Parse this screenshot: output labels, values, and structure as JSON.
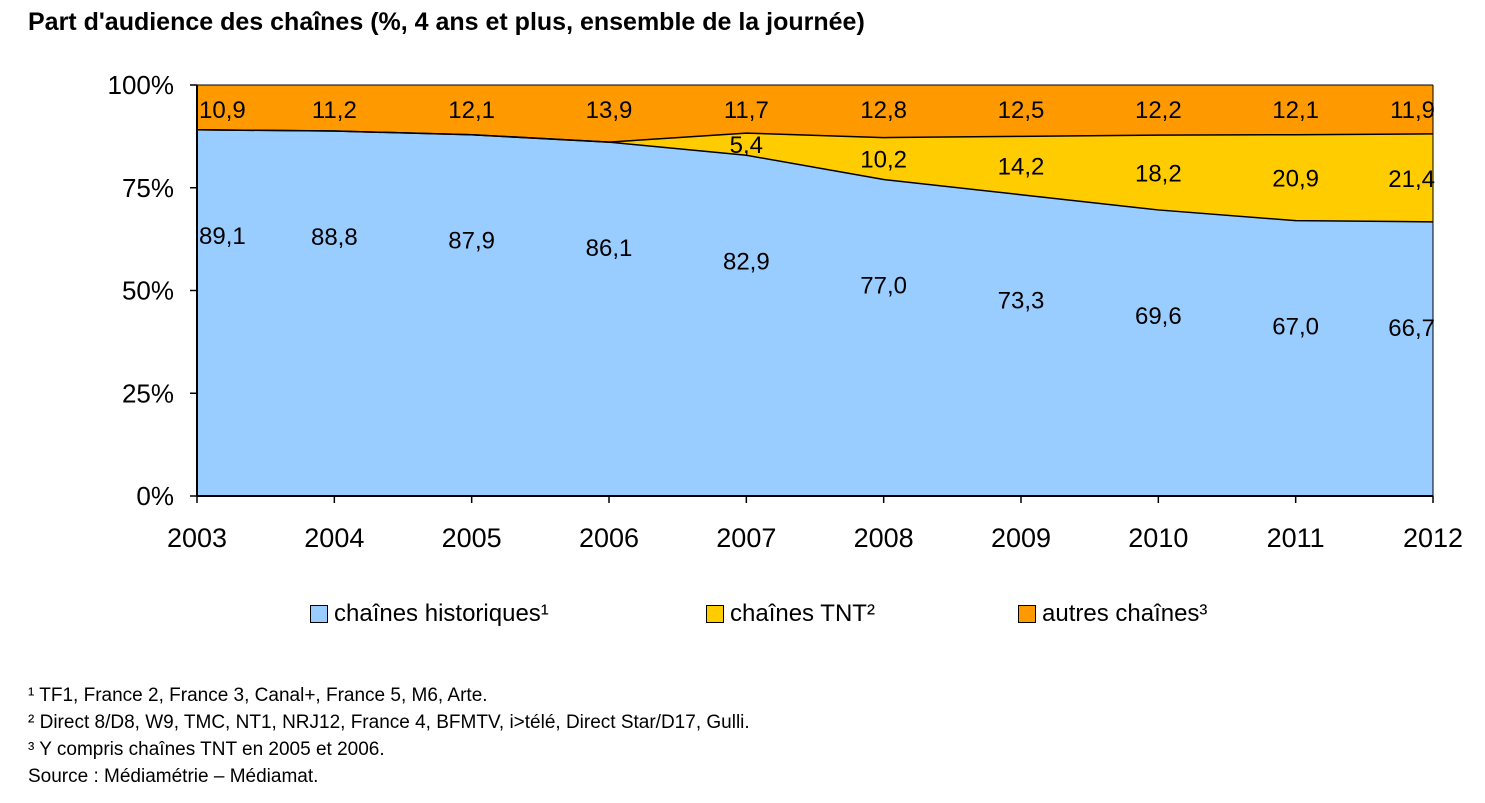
{
  "title": "Part d'audience des chaînes (%, 4 ans et plus, ensemble de la journée)",
  "chart_data": {
    "type": "area",
    "stacked": true,
    "categories": [
      "2003",
      "2004",
      "2005",
      "2006",
      "2007",
      "2008",
      "2009",
      "2010",
      "2011",
      "2012"
    ],
    "y_ticks": [
      "0%",
      "25%",
      "50%",
      "75%",
      "100%"
    ],
    "ylim": [
      0,
      100
    ],
    "grid": false,
    "legend_position": "bottom",
    "series": [
      {
        "name": "chaînes historiques¹",
        "color": "#99ccff",
        "values": [
          89.1,
          88.8,
          87.9,
          86.1,
          82.9,
          77.0,
          73.3,
          69.6,
          67.0,
          66.7
        ],
        "labels": [
          "89,1",
          "88,8",
          "87,9",
          "86,1",
          "82,9",
          "77,0",
          "73,3",
          "69,6",
          "67,0",
          "66,7"
        ]
      },
      {
        "name": "chaînes TNT²",
        "color": "#ffcc00",
        "values": [
          0,
          0,
          0,
          0,
          5.4,
          10.2,
          14.2,
          18.2,
          20.9,
          21.4
        ],
        "labels": [
          "",
          "",
          "",
          "",
          "5,4",
          "10,2",
          "14,2",
          "18,2",
          "20,9",
          "21,4"
        ]
      },
      {
        "name": "autres chaînes³",
        "color": "#ff9900",
        "values": [
          10.9,
          11.2,
          12.1,
          13.9,
          11.7,
          12.8,
          12.5,
          12.2,
          12.1,
          11.9
        ],
        "labels": [
          "10,9",
          "11,2",
          "12,1",
          "13,9",
          "11,7",
          "12,8",
          "12,5",
          "12,2",
          "12,1",
          "11,9"
        ]
      }
    ]
  },
  "footnotes": [
    "¹ TF1, France 2, France 3, Canal+, France 5, M6, Arte.",
    "² Direct 8/D8, W9, TMC, NT1, NRJ12, France 4, BFMTV, i>télé, Direct Star/D17, Gulli.",
    "³ Y compris chaînes TNT en 2005 et 2006."
  ],
  "source": "Source : Médiamétrie – Médiamat."
}
